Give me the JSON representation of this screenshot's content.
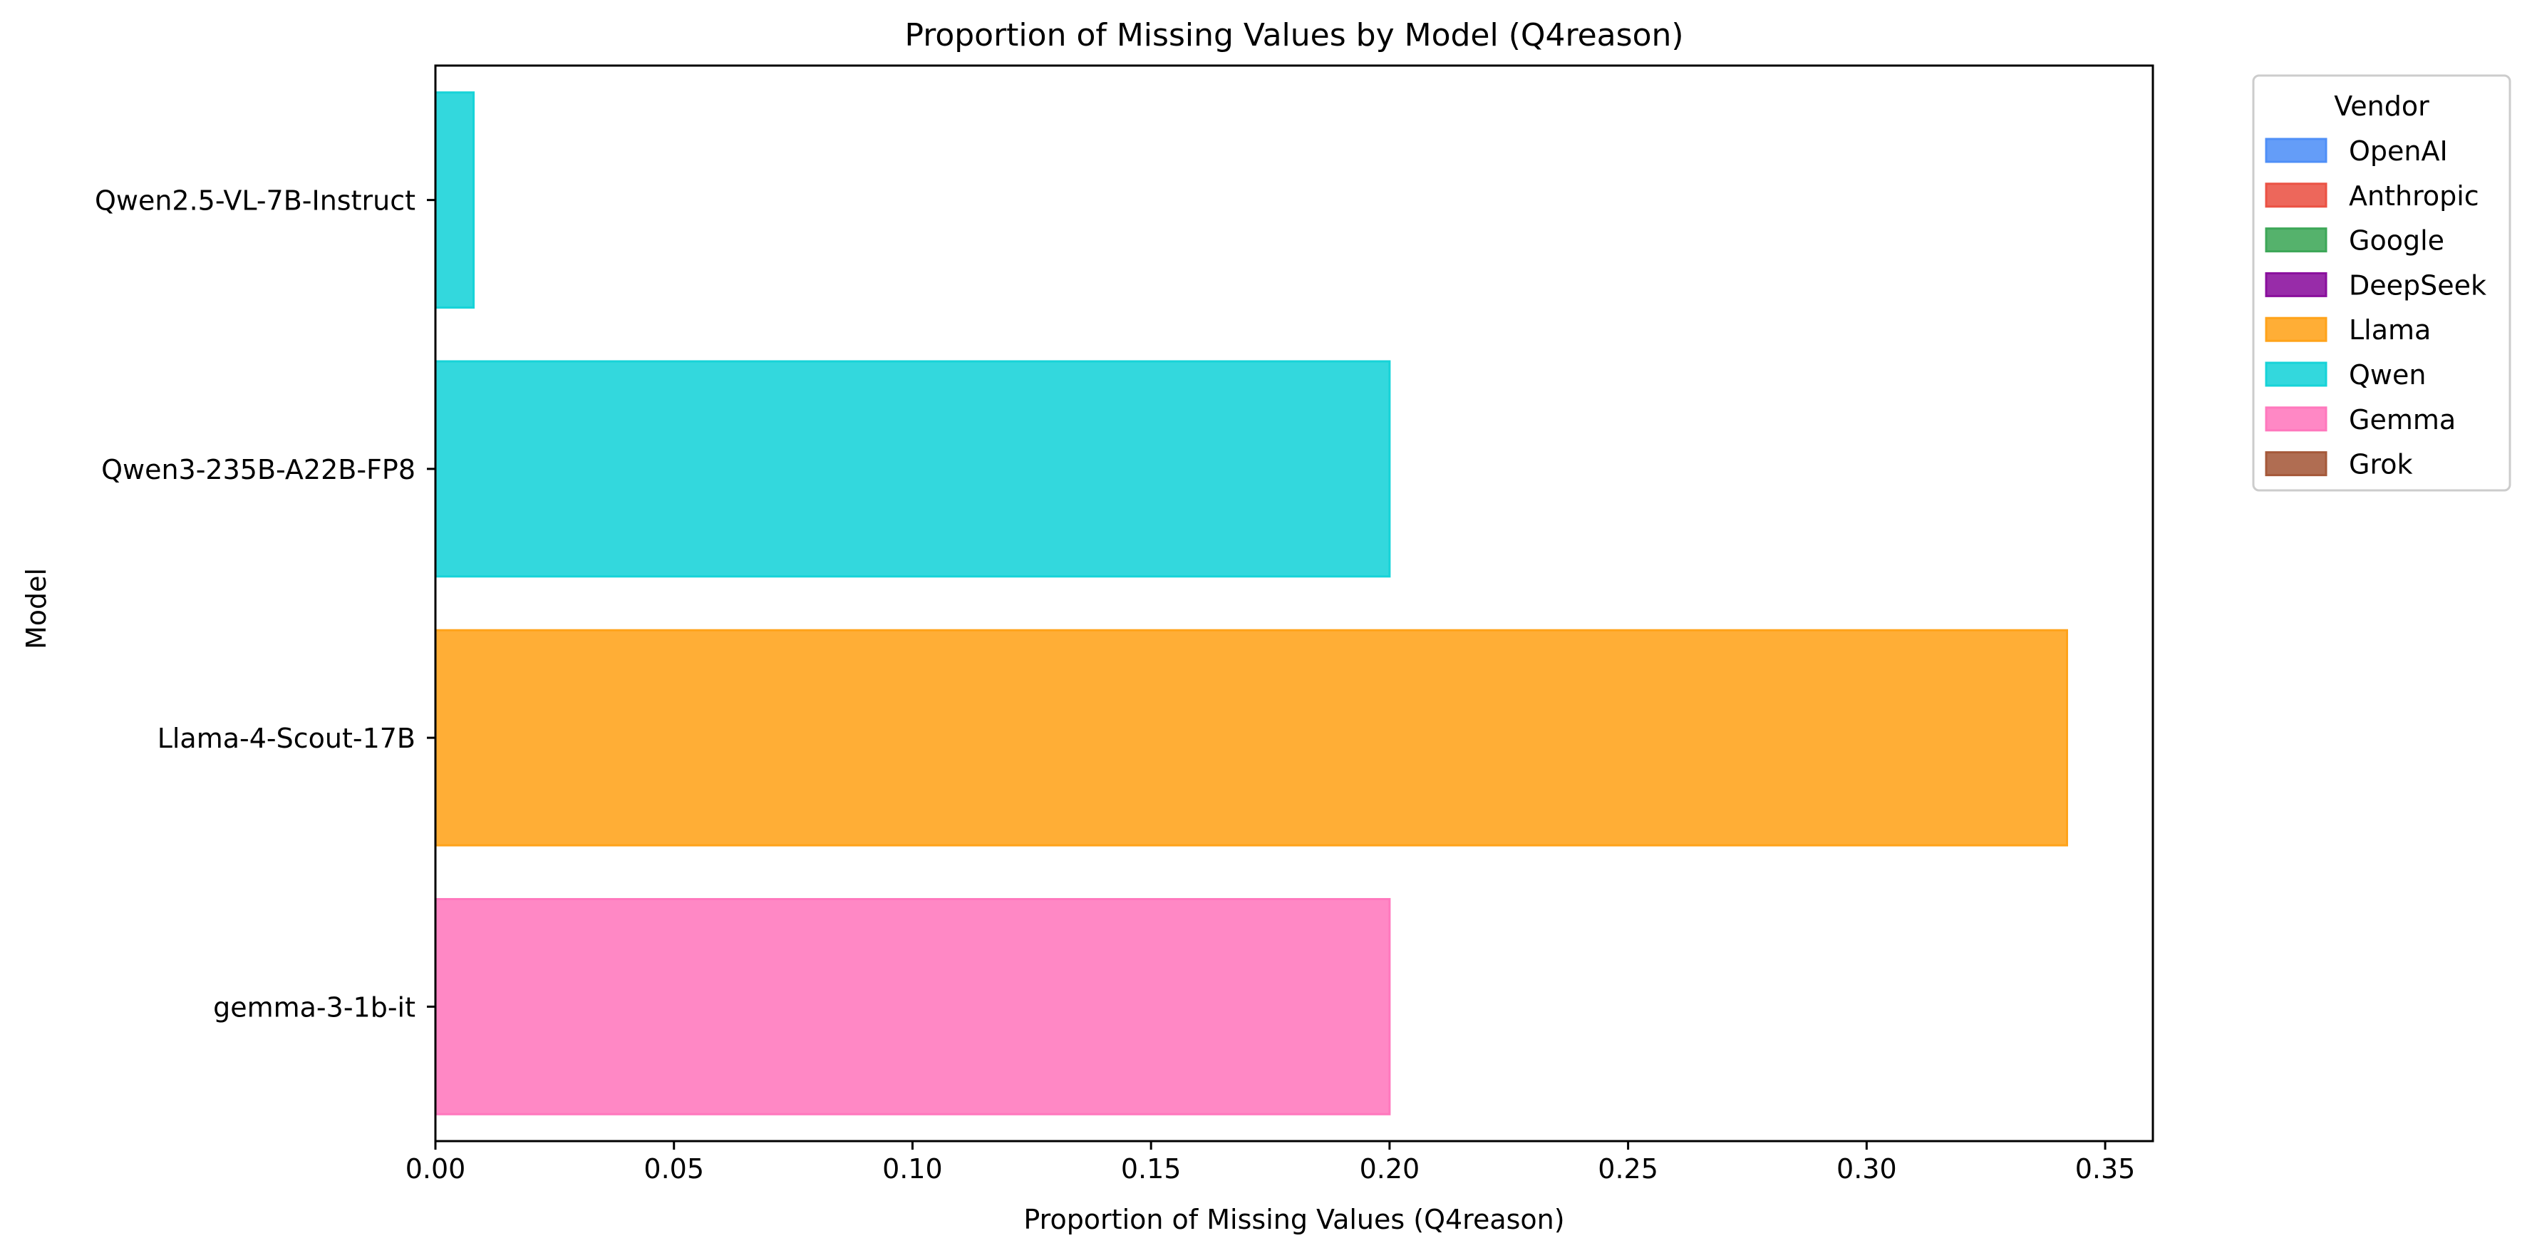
{
  "chart_data": {
    "type": "bar",
    "orientation": "horizontal",
    "title": "Proportion of Missing Values by Model (Q4reason)",
    "xlabel": "Proportion of Missing Values (Q4reason)",
    "ylabel": "Model",
    "xlim": [
      0,
      0.36
    ],
    "xticks": [
      0.0,
      0.05,
      0.1,
      0.15,
      0.2,
      0.25,
      0.3,
      0.35
    ],
    "xtick_labels": [
      "0.00",
      "0.05",
      "0.10",
      "0.15",
      "0.20",
      "0.25",
      "0.30",
      "0.35"
    ],
    "grid": false,
    "categories": [
      "Qwen2.5-VL-7B-Instruct",
      "Qwen3-235B-A22B-FP8",
      "Llama-4-Scout-17B",
      "gemma-3-1b-it"
    ],
    "values": [
      0.008,
      0.2,
      0.342,
      0.2
    ],
    "vendors": [
      "Qwen",
      "Qwen",
      "Llama",
      "Gemma"
    ],
    "legend": {
      "title": "Vendor",
      "placement": "outside-top-right",
      "entries": [
        {
          "name": "OpenAI",
          "color": "#4f8ff7"
        },
        {
          "name": "Anthropic",
          "color": "#eb5244"
        },
        {
          "name": "Google",
          "color": "#3da758"
        },
        {
          "name": "DeepSeek",
          "color": "#8a0f9d"
        },
        {
          "name": "Llama",
          "color": "#ffa31a"
        },
        {
          "name": "Qwen",
          "color": "#17d3d8"
        },
        {
          "name": "Gemma",
          "color": "#ff78bd"
        },
        {
          "name": "Grok",
          "color": "#a5593a"
        }
      ]
    }
  }
}
